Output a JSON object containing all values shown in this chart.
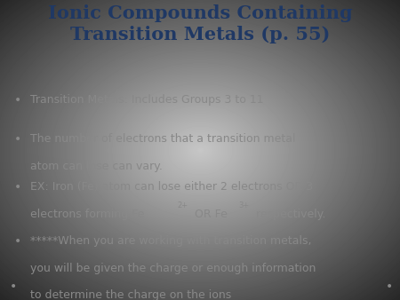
{
  "title_line1": "Ionic Compounds Containing",
  "title_line2": "Transition Metals (p. 55)",
  "title_color": "#1F3864",
  "background_top": "#DCDCDC",
  "background_mid": "#F0F0F0",
  "bullet_color": "#888888",
  "bullet_text_color": "#888888",
  "bullet1": "Transition Metals: Includes Groups 3 to 11",
  "bullet2_l1": "The number of electrons that a transition metal",
  "bullet2_l2": "atom can lose can vary.",
  "bullet3_l1": "EX: Iron (Fe) atom can lose either 2 electrons OR 3",
  "bullet3_l2_pre": "electrons forming Fe",
  "bullet3_l2_sup1": "2+",
  "bullet3_l2_mid": " OR Fe",
  "bullet3_l2_sup2": "3+",
  "bullet3_l2_post": " respectively.",
  "bullet4_l1": "*****When you are working with transition metals,",
  "bullet4_l2": "you will be given the charge or enough information",
  "bullet4_l3": "to determine the charge on the ions",
  "title_fontsize": 15,
  "bullet_fontsize": 9,
  "figsize": [
    4.5,
    3.38
  ],
  "dpi": 100
}
